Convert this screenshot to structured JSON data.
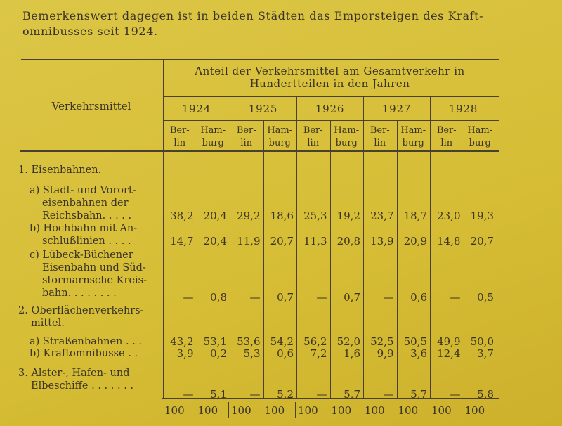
{
  "intro": [
    "Bemerkenswert dagegen ist in beiden Städten das Emporsteigen des Kraft-",
    "omnibusses seit 1924."
  ],
  "table": {
    "stub_header": "Verkehrsmittel",
    "span_header": [
      "Anteil der Verkehrsmittel am Gesamtverkehr in",
      "Hundertteilen in den Jahren"
    ],
    "years": [
      "1924",
      "1925",
      "1926",
      "1927",
      "1928"
    ],
    "sub_columns": [
      [
        "Ber-",
        "lin"
      ],
      [
        "Ham-",
        "burg"
      ]
    ],
    "rows": [
      {
        "label": [
          "1. Eisenbahnen."
        ]
      },
      {
        "label": [
          "a) Stadt- und Vorort-",
          "eisenbahnen der",
          "Reichsbahn. . . . ."
        ],
        "values": [
          "38,2",
          "20,4",
          "29,2",
          "18,6",
          "25,3",
          "19,2",
          "23,7",
          "18,7",
          "23,0",
          "19,3"
        ]
      },
      {
        "label": [
          "b) Hochbahn mit An-",
          "schlußlinien . . . ."
        ],
        "values": [
          "14,7",
          "20,4",
          "11,9",
          "20,7",
          "11,3",
          "20,8",
          "13,9",
          "20,9",
          "14,8",
          "20,7"
        ]
      },
      {
        "label": [
          "c) Lübeck-Büchener",
          "Eisenbahn und Süd-",
          "stormarnsche Kreis-",
          "bahn. . . . . . . ."
        ],
        "values": [
          "—",
          "0,8",
          "—",
          "0,7",
          "—",
          "0,7",
          "—",
          "0,6",
          "—",
          "0,5"
        ]
      },
      {
        "label": [
          "2. Oberflächenverkehrs-",
          "mittel."
        ]
      },
      {
        "label": [
          "a) Straßenbahnen . . ."
        ],
        "values": [
          "43,2",
          "53,1",
          "53,6",
          "54,2",
          "56,2",
          "52,0",
          "52,5",
          "50,5",
          "49,9",
          "50,0"
        ]
      },
      {
        "label": [
          "b) Kraftomnibusse . ."
        ],
        "values": [
          "3,9",
          "0,2",
          "5,3",
          "0,6",
          "7,2",
          "1,6",
          "9,9",
          "3,6",
          "12,4",
          "3,7"
        ]
      },
      {
        "label": [
          "3. Alster-, Hafen- und",
          "Elbeschiffe . . . . . . ."
        ],
        "values": [
          "—",
          "5,1",
          "—",
          "5,2",
          "—",
          "5,7",
          "—",
          "5,7",
          "—",
          "5,8"
        ]
      }
    ],
    "totals": [
      "100",
      "100",
      "100",
      "100",
      "100",
      "100",
      "100",
      "100",
      "100",
      "100"
    ]
  }
}
